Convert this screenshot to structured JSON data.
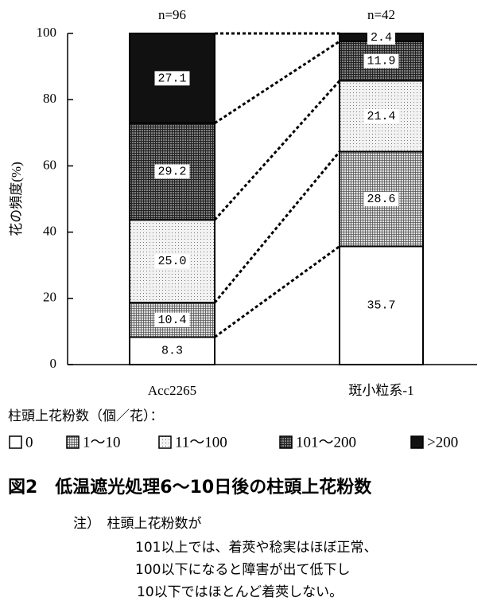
{
  "chart_data": {
    "type": "stacked_bar",
    "y_label": "花の頻度(%)",
    "categories": [
      "Acc2265",
      "斑小粒系-1"
    ],
    "annotations": [
      "n=96",
      "n=42"
    ],
    "legend_title": "柱頭上花粉数（個／花）：",
    "series": [
      {
        "name": "0",
        "color": "#ffffff",
        "values": [
          8.3,
          35.7
        ],
        "value_labels": [
          "8.3",
          "35.7"
        ]
      },
      {
        "name": "1～10",
        "color": "#e0e0e0",
        "values": [
          10.4,
          28.6
        ],
        "value_labels": [
          "10.4",
          "28.6"
        ]
      },
      {
        "name": "11～100",
        "color": "#f2f2f2",
        "values": [
          25.0,
          21.4
        ],
        "value_labels": [
          "25.0",
          "21.4"
        ]
      },
      {
        "name": "101～200",
        "color": "#8c8c8c",
        "values": [
          29.2,
          11.9
        ],
        "value_labels": [
          "29.2",
          "11.9"
        ]
      },
      {
        "name": ">200",
        "color": "#111111",
        "values": [
          27.1,
          2.4
        ],
        "value_labels": [
          "27.1",
          "2.4"
        ]
      }
    ],
    "ylim": [
      0,
      100
    ],
    "yticks": [
      0,
      20,
      40,
      60,
      80,
      100
    ]
  },
  "caption": {
    "title": "図2　低温遮光処理6～10日後の柱頭上花粉数",
    "notes": [
      "注）　柱頭上花粉数が",
      "101以上では、着莢や稔実はほぼ正常、",
      "100以下になると障害が出て低下し",
      "10以下ではほとんど着莢しない。"
    ]
  }
}
